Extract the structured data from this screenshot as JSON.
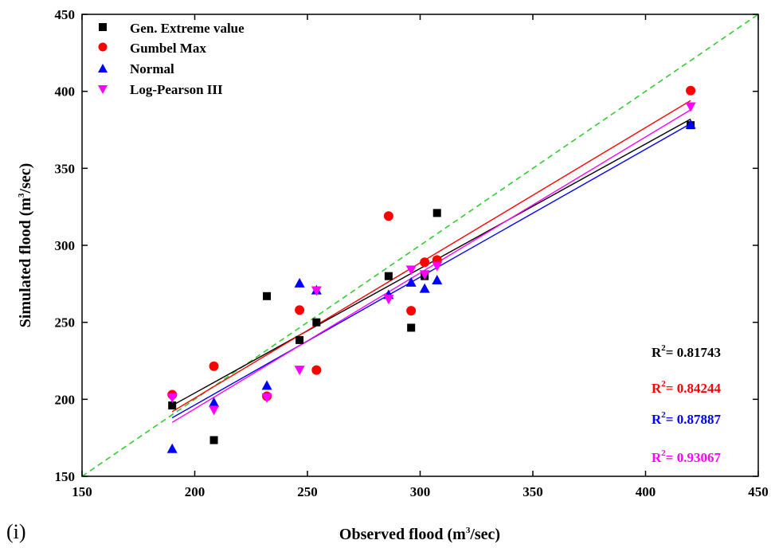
{
  "panel_label": "(i)",
  "chart_data": {
    "type": "scatter",
    "xlabel_main": "Observed flood (m",
    "xlabel_sup": "3",
    "xlabel_end": "/sec)",
    "ylabel_main": "Simulated flood (m",
    "ylabel_sup": "3",
    "ylabel_end": "/sec)",
    "xlim": [
      150,
      450
    ],
    "ylim": [
      150,
      450
    ],
    "x_ticks": [
      "150",
      "200",
      "250",
      "300",
      "350",
      "400",
      "450"
    ],
    "y_ticks": [
      "150",
      "200",
      "250",
      "300",
      "350",
      "400",
      "450"
    ],
    "x_tick_values": [
      150,
      200,
      250,
      300,
      350,
      400,
      450
    ],
    "y_tick_values": [
      150,
      200,
      250,
      300,
      350,
      400,
      450
    ],
    "grid": false,
    "legend_position": "top-left",
    "reference_line": {
      "type": "1:1",
      "color": "#33cc33",
      "style": "dashed"
    },
    "series": [
      {
        "name": "Gen. Extreme value",
        "marker": "square",
        "color": "#000000",
        "r2_prefix": "R",
        "r2_sup": "2",
        "r2_value": "= 0.81743",
        "fit": [
          [
            190,
            196
          ],
          [
            420,
            382
          ]
        ],
        "points": [
          [
            190,
            196
          ],
          [
            208.5,
            173.5
          ],
          [
            232,
            267
          ],
          [
            246.5,
            238.5
          ],
          [
            254,
            250
          ],
          [
            286,
            280
          ],
          [
            296,
            246.5
          ],
          [
            302,
            280
          ],
          [
            307.5,
            321
          ],
          [
            420,
            378
          ]
        ]
      },
      {
        "name": "Gumbel Max",
        "marker": "circle",
        "color": "#ff0000",
        "r2_prefix": "R",
        "r2_sup": "2",
        "r2_value": "= 0.84244",
        "fit": [
          [
            190,
            192
          ],
          [
            420,
            394
          ]
        ],
        "points": [
          [
            190,
            203
          ],
          [
            208.5,
            221.5
          ],
          [
            232,
            202
          ],
          [
            246.5,
            258
          ],
          [
            254,
            219
          ],
          [
            286,
            319
          ],
          [
            296,
            257.5
          ],
          [
            302,
            289
          ],
          [
            307.5,
            290.5
          ],
          [
            420,
            400.5
          ]
        ]
      },
      {
        "name": "Normal",
        "marker": "triangle-up",
        "color": "#0000ff",
        "r2_prefix": "R",
        "r2_sup": "2",
        "r2_value": "= 0.87887",
        "fit": [
          [
            190,
            188
          ],
          [
            420,
            379
          ]
        ],
        "points": [
          [
            190,
            168
          ],
          [
            208.5,
            198
          ],
          [
            232,
            209
          ],
          [
            246.5,
            275.5
          ],
          [
            254,
            271
          ],
          [
            286,
            268
          ],
          [
            296,
            276
          ],
          [
            302,
            272
          ],
          [
            307.5,
            277.5
          ],
          [
            420,
            378.5
          ]
        ]
      },
      {
        "name": "Log-Pearson III",
        "marker": "triangle-down",
        "color": "#ff00ff",
        "r2_prefix": "R",
        "r2_sup": "2",
        "r2_value": "= 0.93067",
        "fit": [
          [
            190,
            185
          ],
          [
            420,
            388
          ]
        ],
        "points": [
          [
            190,
            201
          ],
          [
            208.5,
            193
          ],
          [
            232,
            201
          ],
          [
            246.5,
            219
          ],
          [
            254,
            270.5
          ],
          [
            286,
            265
          ],
          [
            296,
            284
          ],
          [
            302,
            281
          ],
          [
            307.5,
            286.5
          ],
          [
            420,
            390
          ]
        ]
      }
    ]
  }
}
